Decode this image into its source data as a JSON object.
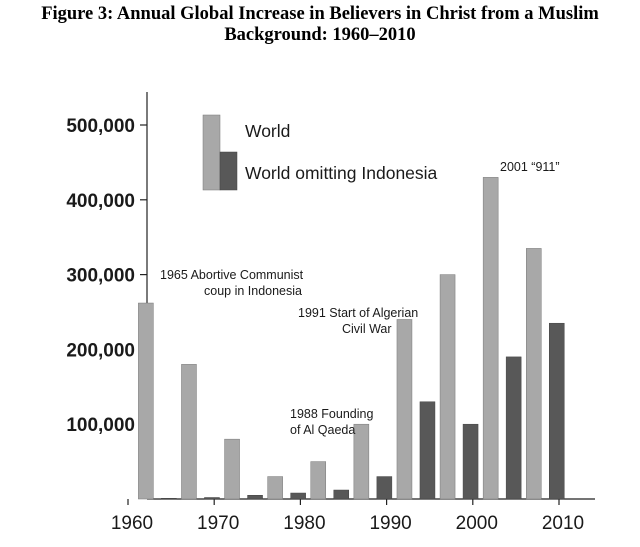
{
  "chart_data": {
    "type": "bar",
    "title_line1": "Figure 3: Annual Global Increase in Believers in Christ from a Muslim",
    "title_line2": "Background: 1960–2010",
    "xlabel": "",
    "ylabel": "",
    "x_ticks": [
      "1960",
      "1970",
      "1980",
      "1990",
      "2000",
      "2010"
    ],
    "y_ticks": [
      "500,000",
      "400,000",
      "300,000",
      "200,000",
      "100,000"
    ],
    "y_tick_values": [
      500000,
      400000,
      300000,
      200000,
      100000
    ],
    "ylim": [
      0,
      500000
    ],
    "xlim": [
      1960,
      2013
    ],
    "grid": false,
    "legend_placement": "top-center",
    "x": [
      1963,
      1968,
      1973,
      1978,
      1983,
      1988,
      1993,
      1998,
      2003,
      2008
    ],
    "series": [
      {
        "name": "World",
        "color": "#a8a8a8",
        "values": [
          262000,
          180000,
          80000,
          30000,
          50000,
          100000,
          240000,
          300000,
          430000,
          335000
        ]
      },
      {
        "name": "World omitting Indonesia",
        "color": "#585858",
        "values": [
          1000,
          2000,
          5000,
          8000,
          12000,
          30000,
          130000,
          100000,
          190000,
          235000
        ]
      }
    ],
    "annotations": [
      {
        "lines": [
          "1965 Abortive Communist",
          "coup in Indonesia"
        ]
      },
      {
        "lines": [
          "1991 Start of Algerian",
          "Civil War"
        ]
      },
      {
        "lines": [
          "1988 Founding",
          "of Al Qaeda"
        ]
      },
      {
        "lines": [
          "2001 “911”"
        ]
      }
    ]
  }
}
